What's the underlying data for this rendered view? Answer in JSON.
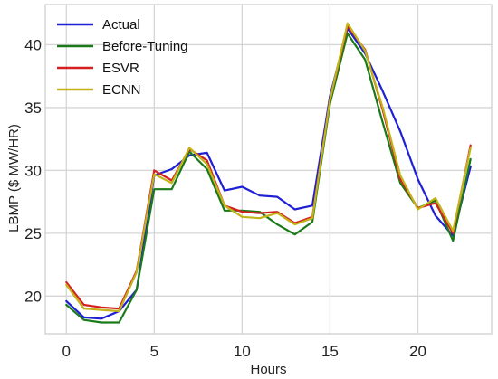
{
  "chart_data": {
    "type": "line",
    "title": "",
    "xlabel": "Hours",
    "ylabel": "LBMP ($ MW/HR)",
    "xlim": [
      -1.2,
      24.2
    ],
    "ylim": [
      17,
      43.2
    ],
    "xticks": [
      0,
      5,
      10,
      15,
      20
    ],
    "yticks": [
      20,
      25,
      30,
      35,
      40
    ],
    "grid": true,
    "legend_position": "top-left",
    "x": [
      0,
      1,
      2,
      3,
      4,
      5,
      6,
      7,
      8,
      9,
      10,
      11,
      12,
      13,
      14,
      15,
      16,
      17,
      18,
      19,
      20,
      21,
      22,
      23
    ],
    "series": [
      {
        "name": "Actual",
        "color": "#1f1fd6",
        "values": [
          19.6,
          18.3,
          18.2,
          18.8,
          20.5,
          29.6,
          30.1,
          31.2,
          31.4,
          28.4,
          28.7,
          28.0,
          27.9,
          26.9,
          27.2,
          35.9,
          41.3,
          39.3,
          36.3,
          33.1,
          29.3,
          26.4,
          24.8,
          30.3
        ]
      },
      {
        "name": "Before-Tuning",
        "color": "#1a7a1a",
        "values": [
          19.3,
          18.1,
          17.9,
          17.9,
          20.5,
          28.5,
          28.5,
          31.5,
          30.1,
          26.8,
          26.8,
          26.7,
          25.7,
          24.9,
          25.9,
          35.3,
          40.9,
          38.8,
          33.8,
          29.0,
          27.0,
          27.6,
          24.4,
          30.9
        ]
      },
      {
        "name": "ESVR",
        "color": "#d62020",
        "values": [
          21.1,
          19.3,
          19.1,
          19.0,
          22.0,
          30.0,
          29.2,
          31.7,
          30.8,
          27.2,
          26.7,
          26.6,
          26.7,
          25.8,
          26.3,
          35.6,
          41.5,
          39.6,
          34.8,
          29.3,
          27.0,
          27.4,
          25.0,
          32.0
        ]
      },
      {
        "name": "ECNN",
        "color": "#c2b319",
        "values": [
          20.9,
          19.0,
          18.9,
          18.8,
          21.9,
          29.7,
          29.0,
          31.8,
          30.5,
          27.2,
          26.3,
          26.2,
          26.6,
          25.7,
          26.2,
          35.6,
          41.7,
          39.5,
          35.0,
          29.6,
          26.9,
          27.8,
          25.2,
          31.8
        ]
      }
    ]
  }
}
